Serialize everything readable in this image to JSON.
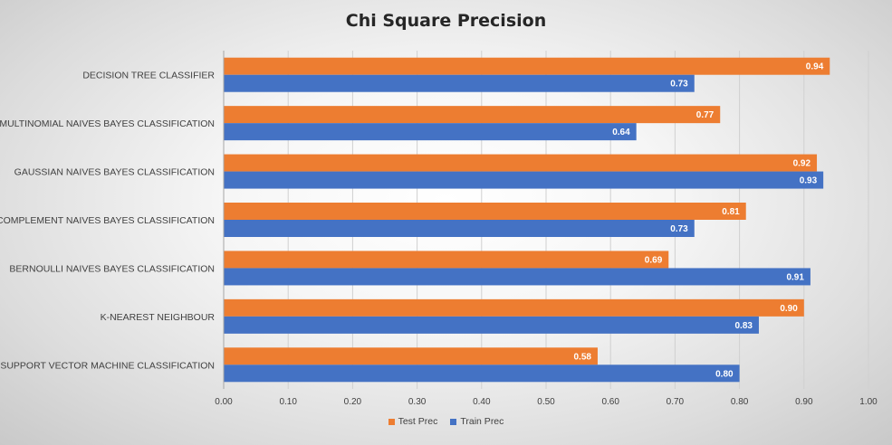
{
  "chart_data": {
    "type": "bar",
    "orientation": "horizontal",
    "title": "Chi Square Precision",
    "categories": [
      "DECISION TREE CLASSIFIER",
      "MULTINOMIAL NAIVES BAYES CLASSIFICATION",
      "GAUSSIAN NAIVES BAYES CLASSIFICATION",
      "COMPLEMENT NAIVES BAYES CLASSIFICATION",
      "BERNOULLI NAIVES BAYES CLASSIFICATION",
      "K-NEAREST NEIGHBOUR",
      "SUPPORT VECTOR MACHINE CLASSIFICATION"
    ],
    "series": [
      {
        "name": "Test Prec",
        "color": "#ED7D31",
        "values": [
          0.94,
          0.77,
          0.92,
          0.81,
          0.69,
          0.9,
          0.58
        ],
        "labels": [
          "0.94",
          "0.77",
          "0.92",
          "0.81",
          "0.69",
          "0.90",
          "0.58"
        ]
      },
      {
        "name": "Train Prec",
        "color": "#4472C4",
        "values": [
          0.73,
          0.64,
          0.93,
          0.73,
          0.91,
          0.83,
          0.8
        ],
        "labels": [
          "0.73",
          "0.64",
          "0.93",
          "0.73",
          "0.91",
          "0.83",
          "0.80"
        ]
      }
    ],
    "xlim": [
      0,
      1
    ],
    "xticks": [
      "0.00",
      "0.10",
      "0.20",
      "0.30",
      "0.40",
      "0.50",
      "0.60",
      "0.70",
      "0.80",
      "0.90",
      "1.00"
    ],
    "grid": true,
    "legend_position": "bottom"
  }
}
